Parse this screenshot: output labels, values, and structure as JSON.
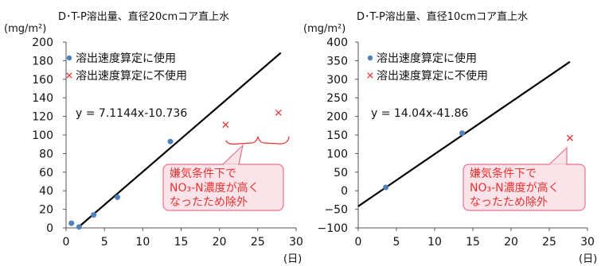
{
  "chart_data": [
    {
      "type": "scatter",
      "title": "D･T-P溶出量、直径20cmコア直上水",
      "ylabel": "(mg/m²)",
      "xunit": "(日)",
      "xlim": [
        0,
        30
      ],
      "ylim": [
        0,
        200
      ],
      "xticks": [
        0,
        5,
        10,
        15,
        20,
        25,
        30
      ],
      "yticks": [
        0,
        20,
        40,
        60,
        80,
        100,
        120,
        140,
        160,
        180,
        200
      ],
      "series": [
        {
          "name": "溶出速度算定に使用",
          "marker": "circle",
          "color": "#4f81bd",
          "points": [
            [
              0.7,
              5
            ],
            [
              1.7,
              1
            ],
            [
              3.6,
              14
            ],
            [
              6.7,
              33
            ],
            [
              13.6,
              93
            ]
          ]
        },
        {
          "name": "溶出速度算定に不使用",
          "marker": "x",
          "color": "#e8332f",
          "points": [
            [
              20.8,
              111
            ],
            [
              27.7,
              124
            ]
          ]
        }
      ],
      "trendline": {
        "slope": 7.1144,
        "intercept": -10.736,
        "x_range": [
          1.6,
          28
        ]
      },
      "equation_label": "y = 7.1144x-10.736",
      "callout": [
        "嫌気条件下で",
        "NO₃-N濃度が高く",
        "なったため除外"
      ]
    },
    {
      "type": "scatter",
      "title": "D･T-P溶出量、直径10cmコア直上水",
      "ylabel": "(mg/m²)",
      "xunit": "(日)",
      "xlim": [
        0,
        30
      ],
      "ylim": [
        -100,
        400
      ],
      "xticks": [
        0,
        5,
        10,
        15,
        20,
        25,
        30
      ],
      "yticks": [
        -100,
        -50,
        0,
        50,
        100,
        150,
        200,
        250,
        300,
        350,
        400
      ],
      "series": [
        {
          "name": "溶出速度算定に使用",
          "marker": "circle",
          "color": "#4f81bd",
          "points": [
            [
              3.6,
              9
            ],
            [
              13.6,
              155
            ]
          ]
        },
        {
          "name": "溶出速度算定に不使用",
          "marker": "x",
          "color": "#e8332f",
          "points": [
            [
              27.7,
              142
            ]
          ]
        }
      ],
      "trendline": {
        "slope": 14.04,
        "intercept": -41.86,
        "x_range": [
          0,
          27.7
        ]
      },
      "equation_label": "y = 14.04x-41.86",
      "callout": [
        "嫌気条件下で",
        "NO₃-N濃度が高く",
        "なったため除外"
      ]
    }
  ]
}
